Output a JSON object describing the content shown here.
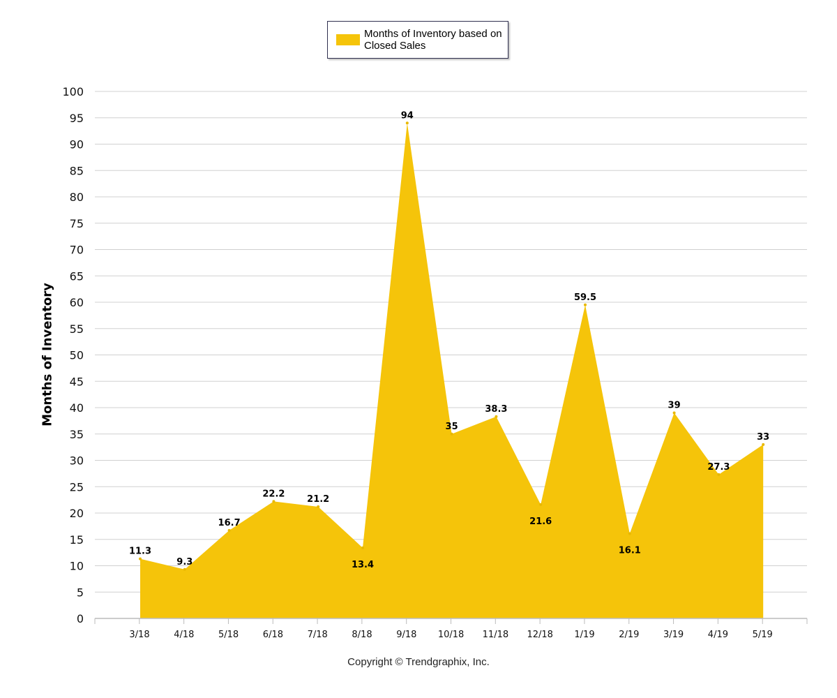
{
  "chart_data": {
    "type": "area",
    "categories": [
      "3/18",
      "4/18",
      "5/18",
      "6/18",
      "7/18",
      "8/18",
      "9/18",
      "10/18",
      "11/18",
      "12/18",
      "1/19",
      "2/19",
      "3/19",
      "4/19",
      "5/19"
    ],
    "series": [
      {
        "name": "Months of Inventory based on Closed Sales",
        "values": [
          11.3,
          9.3,
          16.7,
          22.2,
          21.2,
          13.4,
          94,
          35,
          38.3,
          21.6,
          59.5,
          16.1,
          39,
          27.3,
          33
        ],
        "labels": [
          "11.3",
          "9.3",
          "16.7",
          "22.2",
          "21.2",
          "13.4",
          "94",
          "35",
          "38.3",
          "21.6",
          "59.5",
          "16.1",
          "39",
          "27.3",
          "33"
        ],
        "color": "#f5c40a"
      }
    ],
    "ylabel": "Months of Inventory",
    "ylim": [
      0,
      100
    ],
    "yticks": [
      "0",
      "5",
      "10",
      "15",
      "20",
      "25",
      "30",
      "35",
      "40",
      "45",
      "50",
      "55",
      "60",
      "65",
      "70",
      "75",
      "80",
      "85",
      "90",
      "95",
      "100"
    ],
    "grid": true,
    "legend_position": "top-center"
  },
  "legend": {
    "label": "Months of Inventory based on Closed Sales"
  },
  "footer": {
    "copyright": "Copyright © Trendgraphix, Inc."
  },
  "colors": {
    "area": "#f5c40a",
    "grid": "#d0d0d0",
    "axis": "#bbbbbb"
  }
}
